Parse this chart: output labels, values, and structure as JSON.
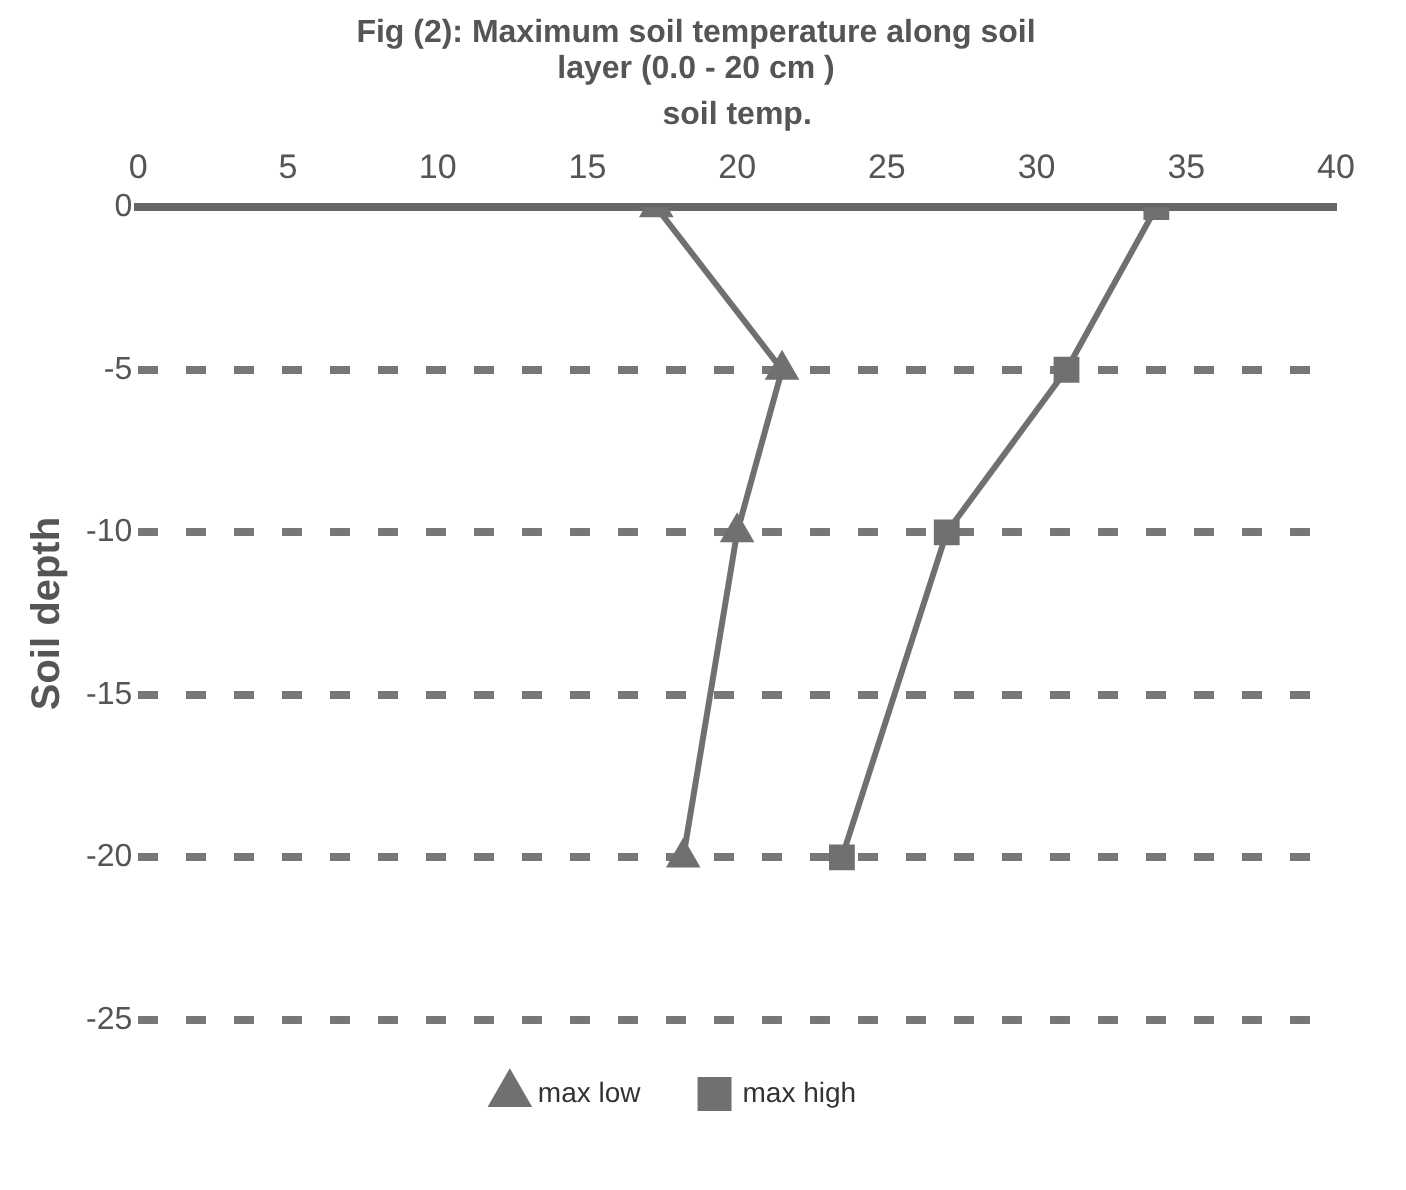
{
  "chart_data": {
    "type": "line",
    "title": "Fig (2): Maximum soil temperature along soil layer (0.0 - 20 cm )",
    "xlabel": "soil temp.",
    "ylabel": "Soil depth",
    "series": [
      {
        "name": "max low",
        "color": "#707070",
        "marker": "triangle",
        "x": [
          17.3,
          21.5,
          20,
          18.2
        ],
        "values": [
          0,
          -5,
          -10,
          -20
        ]
      },
      {
        "name": "max high",
        "color": "#707070",
        "marker": "square",
        "x": [
          34,
          31,
          27,
          23.5
        ],
        "values": [
          0,
          -5,
          -10,
          -20
        ]
      }
    ],
    "xlim": [
      0,
      40
    ],
    "xticks": [
      0,
      5,
      10,
      15,
      20,
      25,
      30,
      35,
      40
    ],
    "ylim": [
      -25,
      0
    ],
    "yticks": [
      -25,
      -20,
      -15,
      -10,
      -5,
      0
    ],
    "grid": "y",
    "legend": "bottom",
    "line_style": "solid"
  }
}
